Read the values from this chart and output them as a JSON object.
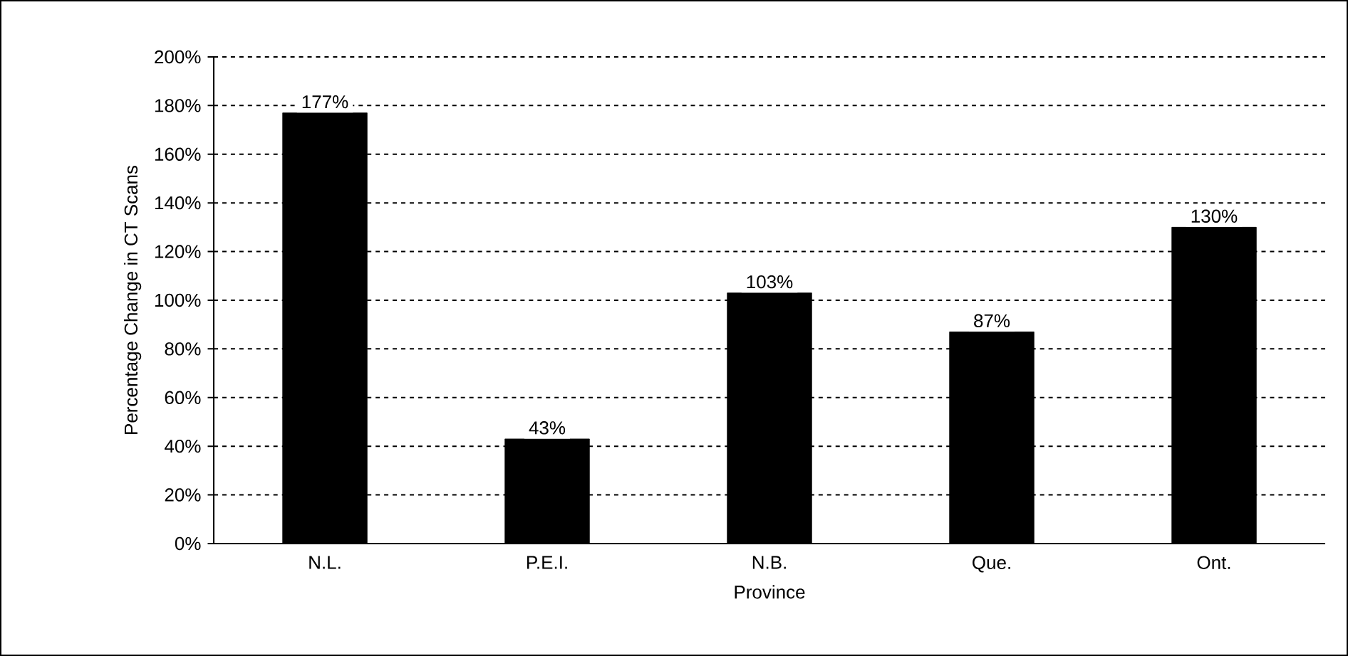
{
  "chart_data": {
    "type": "bar",
    "xlabel": "Province",
    "ylabel": "Percentage Change in CT Scans",
    "categories": [
      "N.L.",
      "P.E.I.",
      "N.B.",
      "Que.",
      "Ont."
    ],
    "values": [
      177,
      43,
      103,
      87,
      130
    ],
    "value_labels": [
      "177%",
      "43%",
      "103%",
      "87%",
      "130%"
    ],
    "color": "#000000",
    "ylim": [
      0,
      200
    ],
    "yticks": [
      {
        "value": 0,
        "label": "0%"
      },
      {
        "value": 20,
        "label": "20%"
      },
      {
        "value": 40,
        "label": "40%"
      },
      {
        "value": 60,
        "label": "60%"
      },
      {
        "value": 80,
        "label": "80%"
      },
      {
        "value": 100,
        "label": "100%"
      },
      {
        "value": 120,
        "label": "120%"
      },
      {
        "value": 140,
        "label": "140%"
      },
      {
        "value": 160,
        "label": "160%"
      },
      {
        "value": 180,
        "label": "180%"
      },
      {
        "value": 200,
        "label": "200%"
      }
    ],
    "grid": "y"
  }
}
